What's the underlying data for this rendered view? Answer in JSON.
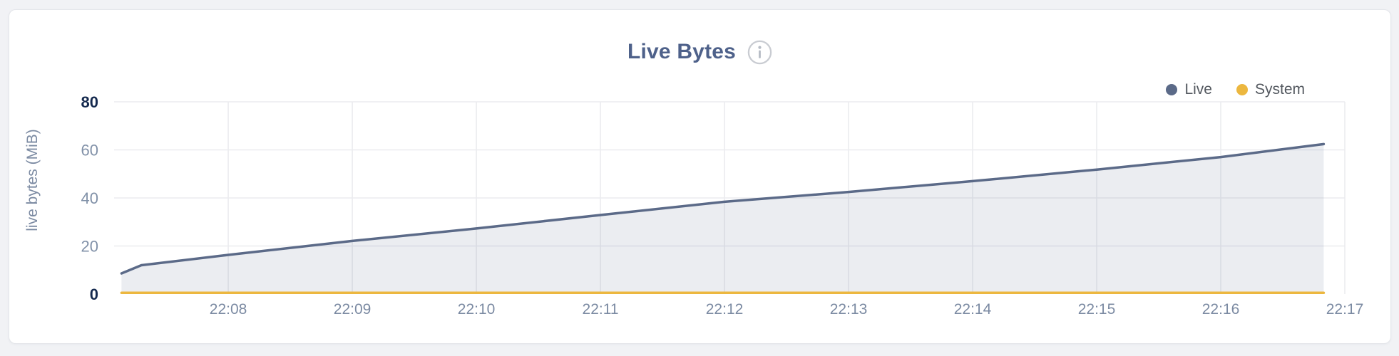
{
  "panel": {
    "title": "Live Bytes",
    "info_icon": "circle-info-i"
  },
  "colors": {
    "page_bg": "#f1f2f5",
    "card_bg": "#ffffff",
    "card_border": "#e4e6ea",
    "title_text": "#4e618a",
    "grid": "#ebecef",
    "axis_tick": "#8191a8",
    "axis_tick_strong": "#14294e",
    "x_tick_text": "#7b8aa2",
    "ylabel_text": "#7b8aa2",
    "legend_text": "#53585f",
    "info_icon_ring": "#c9ccd2",
    "info_icon_glyph": "#b6bcc5",
    "live_series": "#5b6a88",
    "live_fill": "rgba(91,106,136,0.12)",
    "system_series": "#ecb73f"
  },
  "chart_data": {
    "type": "area",
    "title": "Live Bytes",
    "xlabel": "",
    "ylabel": "live bytes (MiB)",
    "units": "MiB",
    "grid": true,
    "legend_position": "top-right",
    "x_unit": "minutes_after_22:00",
    "xlim": [
      7.08,
      17.0
    ],
    "ylim": [
      0,
      80
    ],
    "y_ticks": [
      {
        "value": 0,
        "label": "0",
        "strong": true
      },
      {
        "value": 20,
        "label": "20",
        "strong": false
      },
      {
        "value": 40,
        "label": "40",
        "strong": false
      },
      {
        "value": 60,
        "label": "60",
        "strong": false
      },
      {
        "value": 80,
        "label": "80",
        "strong": true
      }
    ],
    "x_ticks": [
      {
        "minute": 8,
        "label": "22:08"
      },
      {
        "minute": 9,
        "label": "22:09"
      },
      {
        "minute": 10,
        "label": "22:10"
      },
      {
        "minute": 11,
        "label": "22:11"
      },
      {
        "minute": 12,
        "label": "22:12"
      },
      {
        "minute": 13,
        "label": "22:13"
      },
      {
        "minute": 14,
        "label": "22:14"
      },
      {
        "minute": 15,
        "label": "22:15"
      },
      {
        "minute": 16,
        "label": "22:16"
      },
      {
        "minute": 17,
        "label": "22:17"
      }
    ],
    "series": [
      {
        "name": "Live",
        "color": "#5b6a88",
        "fill": "rgba(91,106,136,0.12)",
        "points": [
          [
            7.14,
            8.6
          ],
          [
            7.3,
            12.0
          ],
          [
            8.0,
            16.3
          ],
          [
            9.0,
            22.1
          ],
          [
            10.0,
            27.3
          ],
          [
            11.0,
            32.9
          ],
          [
            12.0,
            38.4
          ],
          [
            13.0,
            42.5
          ],
          [
            14.0,
            47.0
          ],
          [
            15.0,
            51.8
          ],
          [
            16.0,
            57.0
          ],
          [
            16.83,
            62.4
          ]
        ]
      },
      {
        "name": "System",
        "color": "#ecb73f",
        "fill": null,
        "points": [
          [
            7.14,
            0.5
          ],
          [
            16.83,
            0.5
          ]
        ]
      }
    ]
  }
}
